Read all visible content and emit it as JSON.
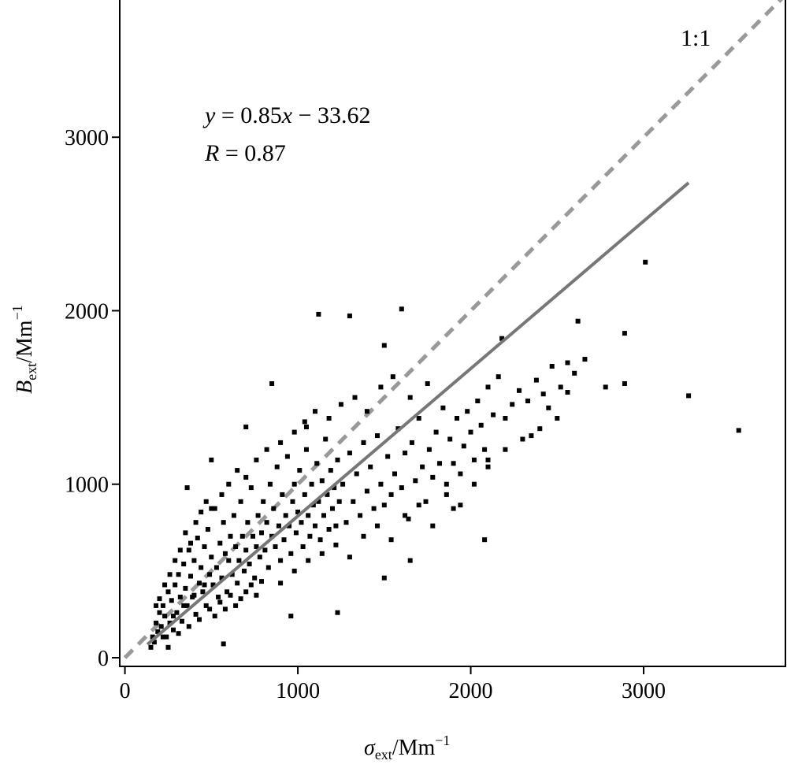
{
  "chart_data": {
    "type": "scatter",
    "xlim": [
      -30,
      3820
    ],
    "ylim": [
      -50,
      3800
    ],
    "x_ticks": [
      0,
      1000,
      2000,
      3000
    ],
    "y_ticks": [
      0,
      1000,
      2000,
      3000
    ],
    "x_tick_labels": [
      "0",
      "1000",
      "2000",
      "3000"
    ],
    "y_tick_labels": [
      "0",
      "1000",
      "2000",
      "3000"
    ],
    "xlabel": {
      "symbol": "σ",
      "subscript": "ext",
      "unit": "/Mm",
      "sup": "−1"
    },
    "ylabel": {
      "symbol": "B",
      "subscript": "ext",
      "unit": "/Mm",
      "sup": "−1"
    },
    "grid": false,
    "legend": "none",
    "annotations": {
      "equation": {
        "y_var": "y",
        "eq": " = 0.85",
        "x_var": "x",
        "rest": " − 33.62"
      },
      "r_value": {
        "r_var": "R",
        "eq": " = 0.87"
      },
      "one_to_one": "1:1"
    },
    "reference_line": {
      "name": "1:1",
      "style": "dashed",
      "color": "#999999",
      "x": [
        0,
        3820
      ],
      "y": [
        0,
        3820
      ]
    },
    "fit_line": {
      "style": "solid",
      "color": "#777777",
      "slope": 0.85,
      "intercept": -33.62,
      "x": [
        130,
        3260
      ]
    },
    "point_color": "#000000",
    "series": [
      {
        "points": [
          [
            150,
            60
          ],
          [
            160,
            120
          ],
          [
            170,
            90
          ],
          [
            180,
            200
          ],
          [
            190,
            150
          ],
          [
            200,
            260
          ],
          [
            210,
            180
          ],
          [
            220,
            300
          ],
          [
            230,
            240
          ],
          [
            240,
            120
          ],
          [
            250,
            380
          ],
          [
            260,
            200
          ],
          [
            270,
            330
          ],
          [
            280,
            160
          ],
          [
            290,
            420
          ],
          [
            300,
            260
          ],
          [
            310,
            480
          ],
          [
            320,
            350
          ],
          [
            330,
            210
          ],
          [
            340,
            540
          ],
          [
            350,
            400
          ],
          [
            360,
            300
          ],
          [
            370,
            620
          ],
          [
            380,
            470
          ],
          [
            390,
            350
          ],
          [
            400,
            560
          ],
          [
            410,
            250
          ],
          [
            420,
            690
          ],
          [
            430,
            430
          ],
          [
            440,
            520
          ],
          [
            450,
            380
          ],
          [
            460,
            640
          ],
          [
            470,
            300
          ],
          [
            480,
            740
          ],
          [
            490,
            480
          ],
          [
            500,
            580
          ],
          [
            510,
            420
          ],
          [
            520,
            860
          ],
          [
            530,
            520
          ],
          [
            540,
            350
          ],
          [
            550,
            660
          ],
          [
            560,
            460
          ],
          [
            570,
            780
          ],
          [
            580,
            600
          ],
          [
            590,
            380
          ],
          [
            600,
            560
          ],
          [
            610,
            700
          ],
          [
            620,
            480
          ],
          [
            630,
            820
          ],
          [
            640,
            640
          ],
          [
            650,
            430
          ],
          [
            660,
            560
          ],
          [
            670,
            900
          ],
          [
            680,
            700
          ],
          [
            690,
            500
          ],
          [
            700,
            620
          ],
          [
            710,
            780
          ],
          [
            720,
            540
          ],
          [
            730,
            980
          ],
          [
            740,
            700
          ],
          [
            750,
            460
          ],
          [
            760,
            640
          ],
          [
            770,
            820
          ],
          [
            780,
            580
          ],
          [
            790,
            720
          ],
          [
            800,
            900
          ],
          [
            810,
            620
          ],
          [
            820,
            780
          ],
          [
            830,
            520
          ],
          [
            840,
            1000
          ],
          [
            850,
            700
          ],
          [
            860,
            860
          ],
          [
            870,
            640
          ],
          [
            880,
            1100
          ],
          [
            890,
            760
          ],
          [
            900,
            560
          ],
          [
            910,
            940
          ],
          [
            920,
            680
          ],
          [
            930,
            820
          ],
          [
            940,
            1160
          ],
          [
            950,
            760
          ],
          [
            960,
            600
          ],
          [
            970,
            900
          ],
          [
            980,
            1000
          ],
          [
            990,
            720
          ],
          [
            1000,
            840
          ],
          [
            1010,
            1080
          ],
          [
            1020,
            780
          ],
          [
            1030,
            640
          ],
          [
            1040,
            940
          ],
          [
            1050,
            1200
          ],
          [
            1060,
            820
          ],
          [
            1070,
            700
          ],
          [
            1080,
            1000
          ],
          [
            1090,
            880
          ],
          [
            1100,
            760
          ],
          [
            1110,
            1120
          ],
          [
            1120,
            900
          ],
          [
            1130,
            680
          ],
          [
            1140,
            1020
          ],
          [
            1150,
            820
          ],
          [
            1160,
            1260
          ],
          [
            1170,
            940
          ],
          [
            1180,
            740
          ],
          [
            1190,
            1080
          ],
          [
            1200,
            860
          ],
          [
            1210,
            980
          ],
          [
            1220,
            760
          ],
          [
            1230,
            1140
          ],
          [
            1240,
            900
          ],
          [
            1260,
            1000
          ],
          [
            1280,
            780
          ],
          [
            1300,
            1180
          ],
          [
            1320,
            900
          ],
          [
            1340,
            1060
          ],
          [
            1360,
            820
          ],
          [
            1380,
            1240
          ],
          [
            1400,
            960
          ],
          [
            1420,
            1100
          ],
          [
            1440,
            860
          ],
          [
            1460,
            1280
          ],
          [
            1480,
            1000
          ],
          [
            1500,
            880
          ],
          [
            1520,
            1160
          ],
          [
            1540,
            940
          ],
          [
            1560,
            1060
          ],
          [
            1580,
            1320
          ],
          [
            1600,
            980
          ],
          [
            1620,
            1180
          ],
          [
            1640,
            800
          ],
          [
            1660,
            1240
          ],
          [
            1680,
            1020
          ],
          [
            1700,
            1380
          ],
          [
            1720,
            1100
          ],
          [
            1740,
            900
          ],
          [
            1760,
            1200
          ],
          [
            1780,
            1040
          ],
          [
            1800,
            1300
          ],
          [
            1820,
            1120
          ],
          [
            1840,
            1440
          ],
          [
            1860,
            1000
          ],
          [
            1880,
            1260
          ],
          [
            1900,
            1120
          ],
          [
            1920,
            1380
          ],
          [
            1940,
            1060
          ],
          [
            1960,
            1220
          ],
          [
            1980,
            1420
          ],
          [
            2000,
            1300
          ],
          [
            2020,
            1140
          ],
          [
            2040,
            1480
          ],
          [
            2060,
            1340
          ],
          [
            2080,
            1200
          ],
          [
            2100,
            1560
          ],
          [
            2130,
            1400
          ],
          [
            2160,
            1620
          ],
          [
            2200,
            1380
          ],
          [
            2240,
            1460
          ],
          [
            2280,
            1540
          ],
          [
            2330,
            1480
          ],
          [
            2380,
            1600
          ],
          [
            2420,
            1520
          ],
          [
            2470,
            1680
          ],
          [
            2520,
            1560
          ],
          [
            2560,
            1700
          ],
          [
            2600,
            1640
          ],
          [
            220,
            120
          ],
          [
            250,
            60
          ],
          [
            280,
            240
          ],
          [
            310,
            140
          ],
          [
            340,
            300
          ],
          [
            370,
            180
          ],
          [
            400,
            360
          ],
          [
            430,
            220
          ],
          [
            460,
            420
          ],
          [
            490,
            280
          ],
          [
            520,
            240
          ],
          [
            550,
            320
          ],
          [
            580,
            280
          ],
          [
            610,
            360
          ],
          [
            640,
            300
          ],
          [
            670,
            340
          ],
          [
            700,
            380
          ],
          [
            730,
            420
          ],
          [
            760,
            360
          ],
          [
            790,
            440
          ],
          [
            180,
            300
          ],
          [
            200,
            340
          ],
          [
            230,
            420
          ],
          [
            260,
            480
          ],
          [
            290,
            560
          ],
          [
            320,
            620
          ],
          [
            350,
            720
          ],
          [
            380,
            660
          ],
          [
            410,
            780
          ],
          [
            440,
            840
          ],
          [
            470,
            900
          ],
          [
            500,
            860
          ],
          [
            560,
            940
          ],
          [
            600,
            1000
          ],
          [
            650,
            1080
          ],
          [
            700,
            1040
          ],
          [
            760,
            1140
          ],
          [
            820,
            1200
          ],
          [
            900,
            1240
          ],
          [
            980,
            1300
          ],
          [
            1040,
            1360
          ],
          [
            1100,
            1420
          ],
          [
            1180,
            1380
          ],
          [
            1250,
            1460
          ],
          [
            1330,
            1500
          ],
          [
            1400,
            1420
          ],
          [
            1480,
            1560
          ],
          [
            1550,
            1620
          ],
          [
            1650,
            1500
          ],
          [
            1750,
            1580
          ],
          [
            900,
            430
          ],
          [
            980,
            500
          ],
          [
            1060,
            560
          ],
          [
            1140,
            600
          ],
          [
            1220,
            650
          ],
          [
            1300,
            580
          ],
          [
            1380,
            700
          ],
          [
            1460,
            760
          ],
          [
            1540,
            680
          ],
          [
            1620,
            820
          ],
          [
            1700,
            880
          ],
          [
            1780,
            760
          ],
          [
            1860,
            940
          ],
          [
            1940,
            880
          ],
          [
            2020,
            1000
          ],
          [
            2100,
            1100
          ],
          [
            2200,
            1200
          ],
          [
            2300,
            1260
          ],
          [
            2400,
            1320
          ],
          [
            2500,
            1380
          ],
          [
            1300,
            1970
          ],
          [
            1120,
            1980
          ],
          [
            1600,
            2010
          ],
          [
            1500,
            1800
          ],
          [
            850,
            1580
          ],
          [
            3010,
            2280
          ],
          [
            3550,
            1310
          ],
          [
            3260,
            1510
          ],
          [
            2890,
            1870
          ],
          [
            2620,
            1940
          ],
          [
            2660,
            1720
          ],
          [
            2560,
            1530
          ],
          [
            2890,
            1580
          ],
          [
            2780,
            1560
          ],
          [
            2180,
            1840
          ],
          [
            2080,
            680
          ],
          [
            1500,
            460
          ],
          [
            1230,
            260
          ],
          [
            960,
            240
          ],
          [
            570,
            80
          ],
          [
            700,
            1330
          ],
          [
            500,
            1140
          ],
          [
            360,
            980
          ],
          [
            1650,
            560
          ],
          [
            1900,
            860
          ],
          [
            2100,
            1140
          ],
          [
            2350,
            1280
          ],
          [
            2450,
            1440
          ],
          [
            1380,
            1240
          ],
          [
            1050,
            1330
          ]
        ]
      }
    ]
  }
}
